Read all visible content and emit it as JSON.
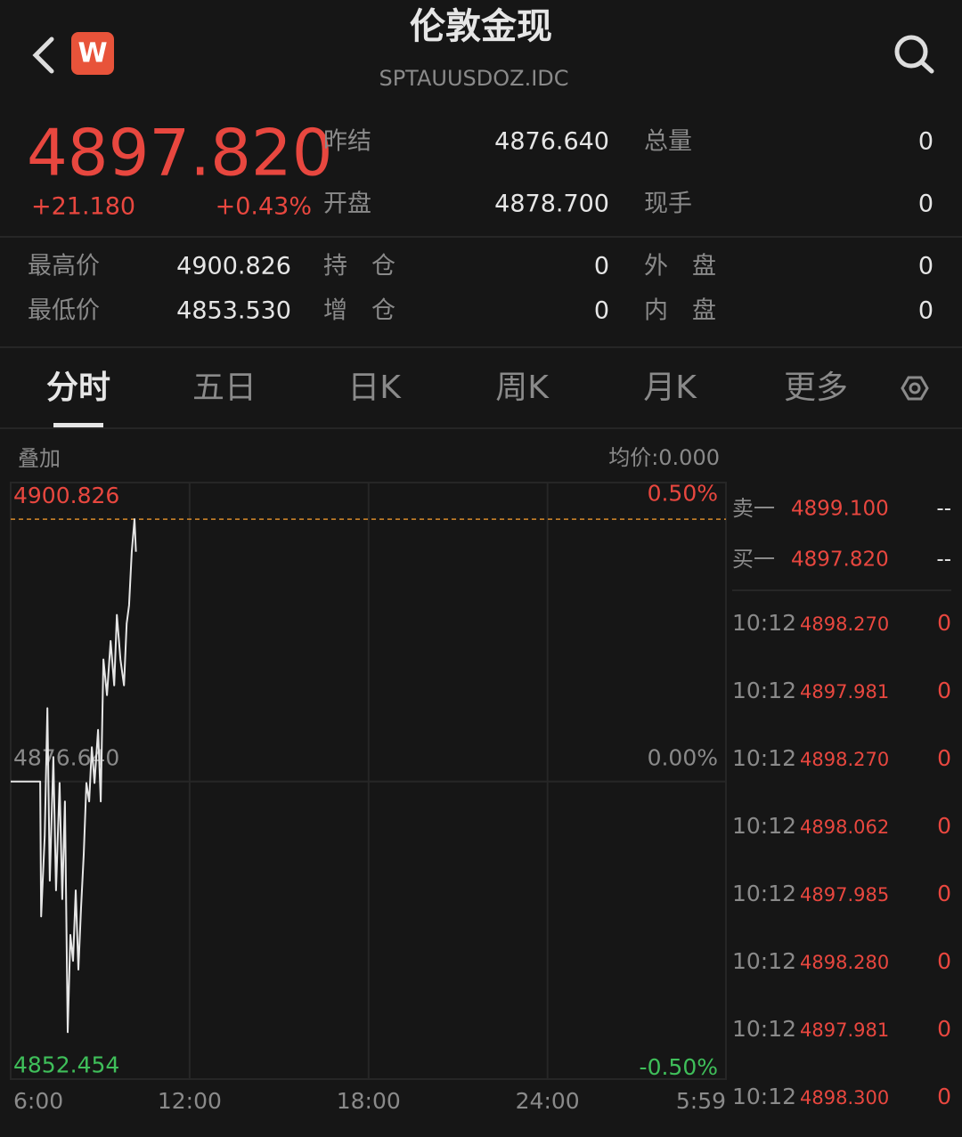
{
  "header": {
    "title": "伦敦金现",
    "code": "SPTAUUSDOZ.IDC",
    "logo": "W"
  },
  "quote": {
    "price": "4897.820",
    "change": "+21.180",
    "change_pct": "+0.43%"
  },
  "stats": [
    [
      {
        "label": "昨结",
        "value": "4876.640"
      },
      {
        "label": "总量",
        "value": "0"
      }
    ],
    [
      {
        "label": "开盘",
        "value": "4878.700"
      },
      {
        "label": "现手",
        "value": "0"
      }
    ],
    [
      {
        "label": "最高价",
        "value": "4900.826"
      },
      {
        "label": "持　仓",
        "value": "0"
      },
      {
        "label": "外　盘",
        "value": "0"
      }
    ],
    [
      {
        "label": "最低价",
        "value": "4853.530"
      },
      {
        "label": "增　仓",
        "value": "0"
      },
      {
        "label": "内　盘",
        "value": "0"
      }
    ]
  ],
  "tabs": [
    "分时",
    "五日",
    "日K",
    "周K",
    "月K",
    "更多"
  ],
  "chart_labels": {
    "overlay": "叠加",
    "average": "均价:0.000"
  },
  "order_book": [
    {
      "label": "卖一",
      "price": "4899.100",
      "volume": "--"
    },
    {
      "label": "买一",
      "price": "4897.820",
      "volume": "--"
    }
  ],
  "trades": [
    {
      "time": "10:12",
      "price": "4898.270",
      "volume": "0"
    },
    {
      "time": "10:12",
      "price": "4897.981",
      "volume": "0"
    },
    {
      "time": "10:12",
      "price": "4898.270",
      "volume": "0"
    },
    {
      "time": "10:12",
      "price": "4898.062",
      "volume": "0"
    },
    {
      "time": "10:12",
      "price": "4897.985",
      "volume": "0"
    },
    {
      "time": "10:12",
      "price": "4898.280",
      "volume": "0"
    },
    {
      "time": "10:12",
      "price": "4897.981",
      "volume": "0"
    },
    {
      "time": "10:12",
      "price": "4898.300",
      "volume": "0"
    }
  ],
  "chart_data": {
    "type": "line",
    "color": "#e6e6e6",
    "x": [
      6.0,
      6.99,
      7.02,
      7.14,
      7.23,
      7.31,
      7.43,
      7.52,
      7.64,
      7.73,
      7.82,
      7.91,
      8.0,
      8.09,
      8.18,
      8.27,
      8.36,
      8.45,
      8.54,
      8.63,
      8.72,
      8.81,
      8.93,
      9.02,
      9.11,
      9.23,
      9.35,
      9.47,
      9.56,
      9.68,
      9.8,
      9.89,
      9.97,
      10.06,
      10.15,
      10.2
    ],
    "values": [
      4876.64,
      4876.64,
      4864.2,
      4871.6,
      4883.4,
      4867.5,
      4878.9,
      4866.6,
      4876.5,
      4865.8,
      4874.8,
      4853.53,
      4862.5,
      4860.1,
      4866.6,
      4859.3,
      4865.0,
      4869.9,
      4876.5,
      4874.8,
      4879.8,
      4876.5,
      4881.4,
      4874.8,
      4887.9,
      4884.6,
      4889.6,
      4885.5,
      4892.0,
      4887.9,
      4885.5,
      4891.2,
      4892.9,
      4897.8,
      4900.826,
      4897.82
    ],
    "xlim": [
      6,
      29.983
    ],
    "xticks": [
      {
        "value": 6,
        "label": "6:00"
      },
      {
        "value": 12,
        "label": "12:00"
      },
      {
        "value": 18,
        "label": "18:00"
      },
      {
        "value": 24,
        "label": "24:00"
      },
      {
        "value": 29.983,
        "label": "5:59"
      }
    ],
    "ylim": [
      4849.2,
      4904.2
    ],
    "yticks": [
      4900.826,
      {
        "value": 4876.64,
        "label": "4876.640"
      },
      4852.454
    ],
    "y2lim": [
      -0.5627,
      0.5651
    ],
    "y2ticks": [
      {
        "value": 0.5,
        "label": "0.50%"
      },
      {
        "value": 0,
        "label": "0.00%"
      },
      {
        "value": -0.5,
        "label": "-0.50%"
      }
    ]
  }
}
